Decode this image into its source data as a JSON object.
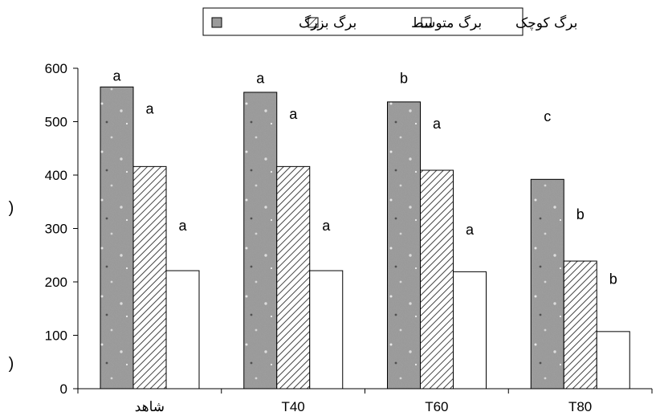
{
  "chart_data": {
    "type": "bar",
    "categories": [
      "شاهد",
      "T40",
      "T60",
      "T80"
    ],
    "series": [
      {
        "name": "برگ بزرگ",
        "values": [
          565,
          555,
          537,
          392
        ],
        "letters": [
          "a",
          "a",
          "b",
          "c"
        ],
        "pattern": "granite"
      },
      {
        "name": "برگ متوسط",
        "values": [
          416,
          416,
          409,
          239
        ],
        "letters": [
          "a",
          "a",
          "a",
          "b"
        ],
        "pattern": "hatch"
      },
      {
        "name": "برگ کوچک",
        "values": [
          221,
          221,
          219,
          107
        ],
        "letters": [
          "a",
          "a",
          "a",
          "b"
        ],
        "pattern": "white"
      }
    ],
    "ylim": [
      0,
      600
    ],
    "yticks": [
      0,
      100,
      200,
      300,
      400,
      500,
      600
    ],
    "ylabel_fragments": [
      ")",
      ")"
    ],
    "legend_placement": "top-center",
    "grid": false
  }
}
